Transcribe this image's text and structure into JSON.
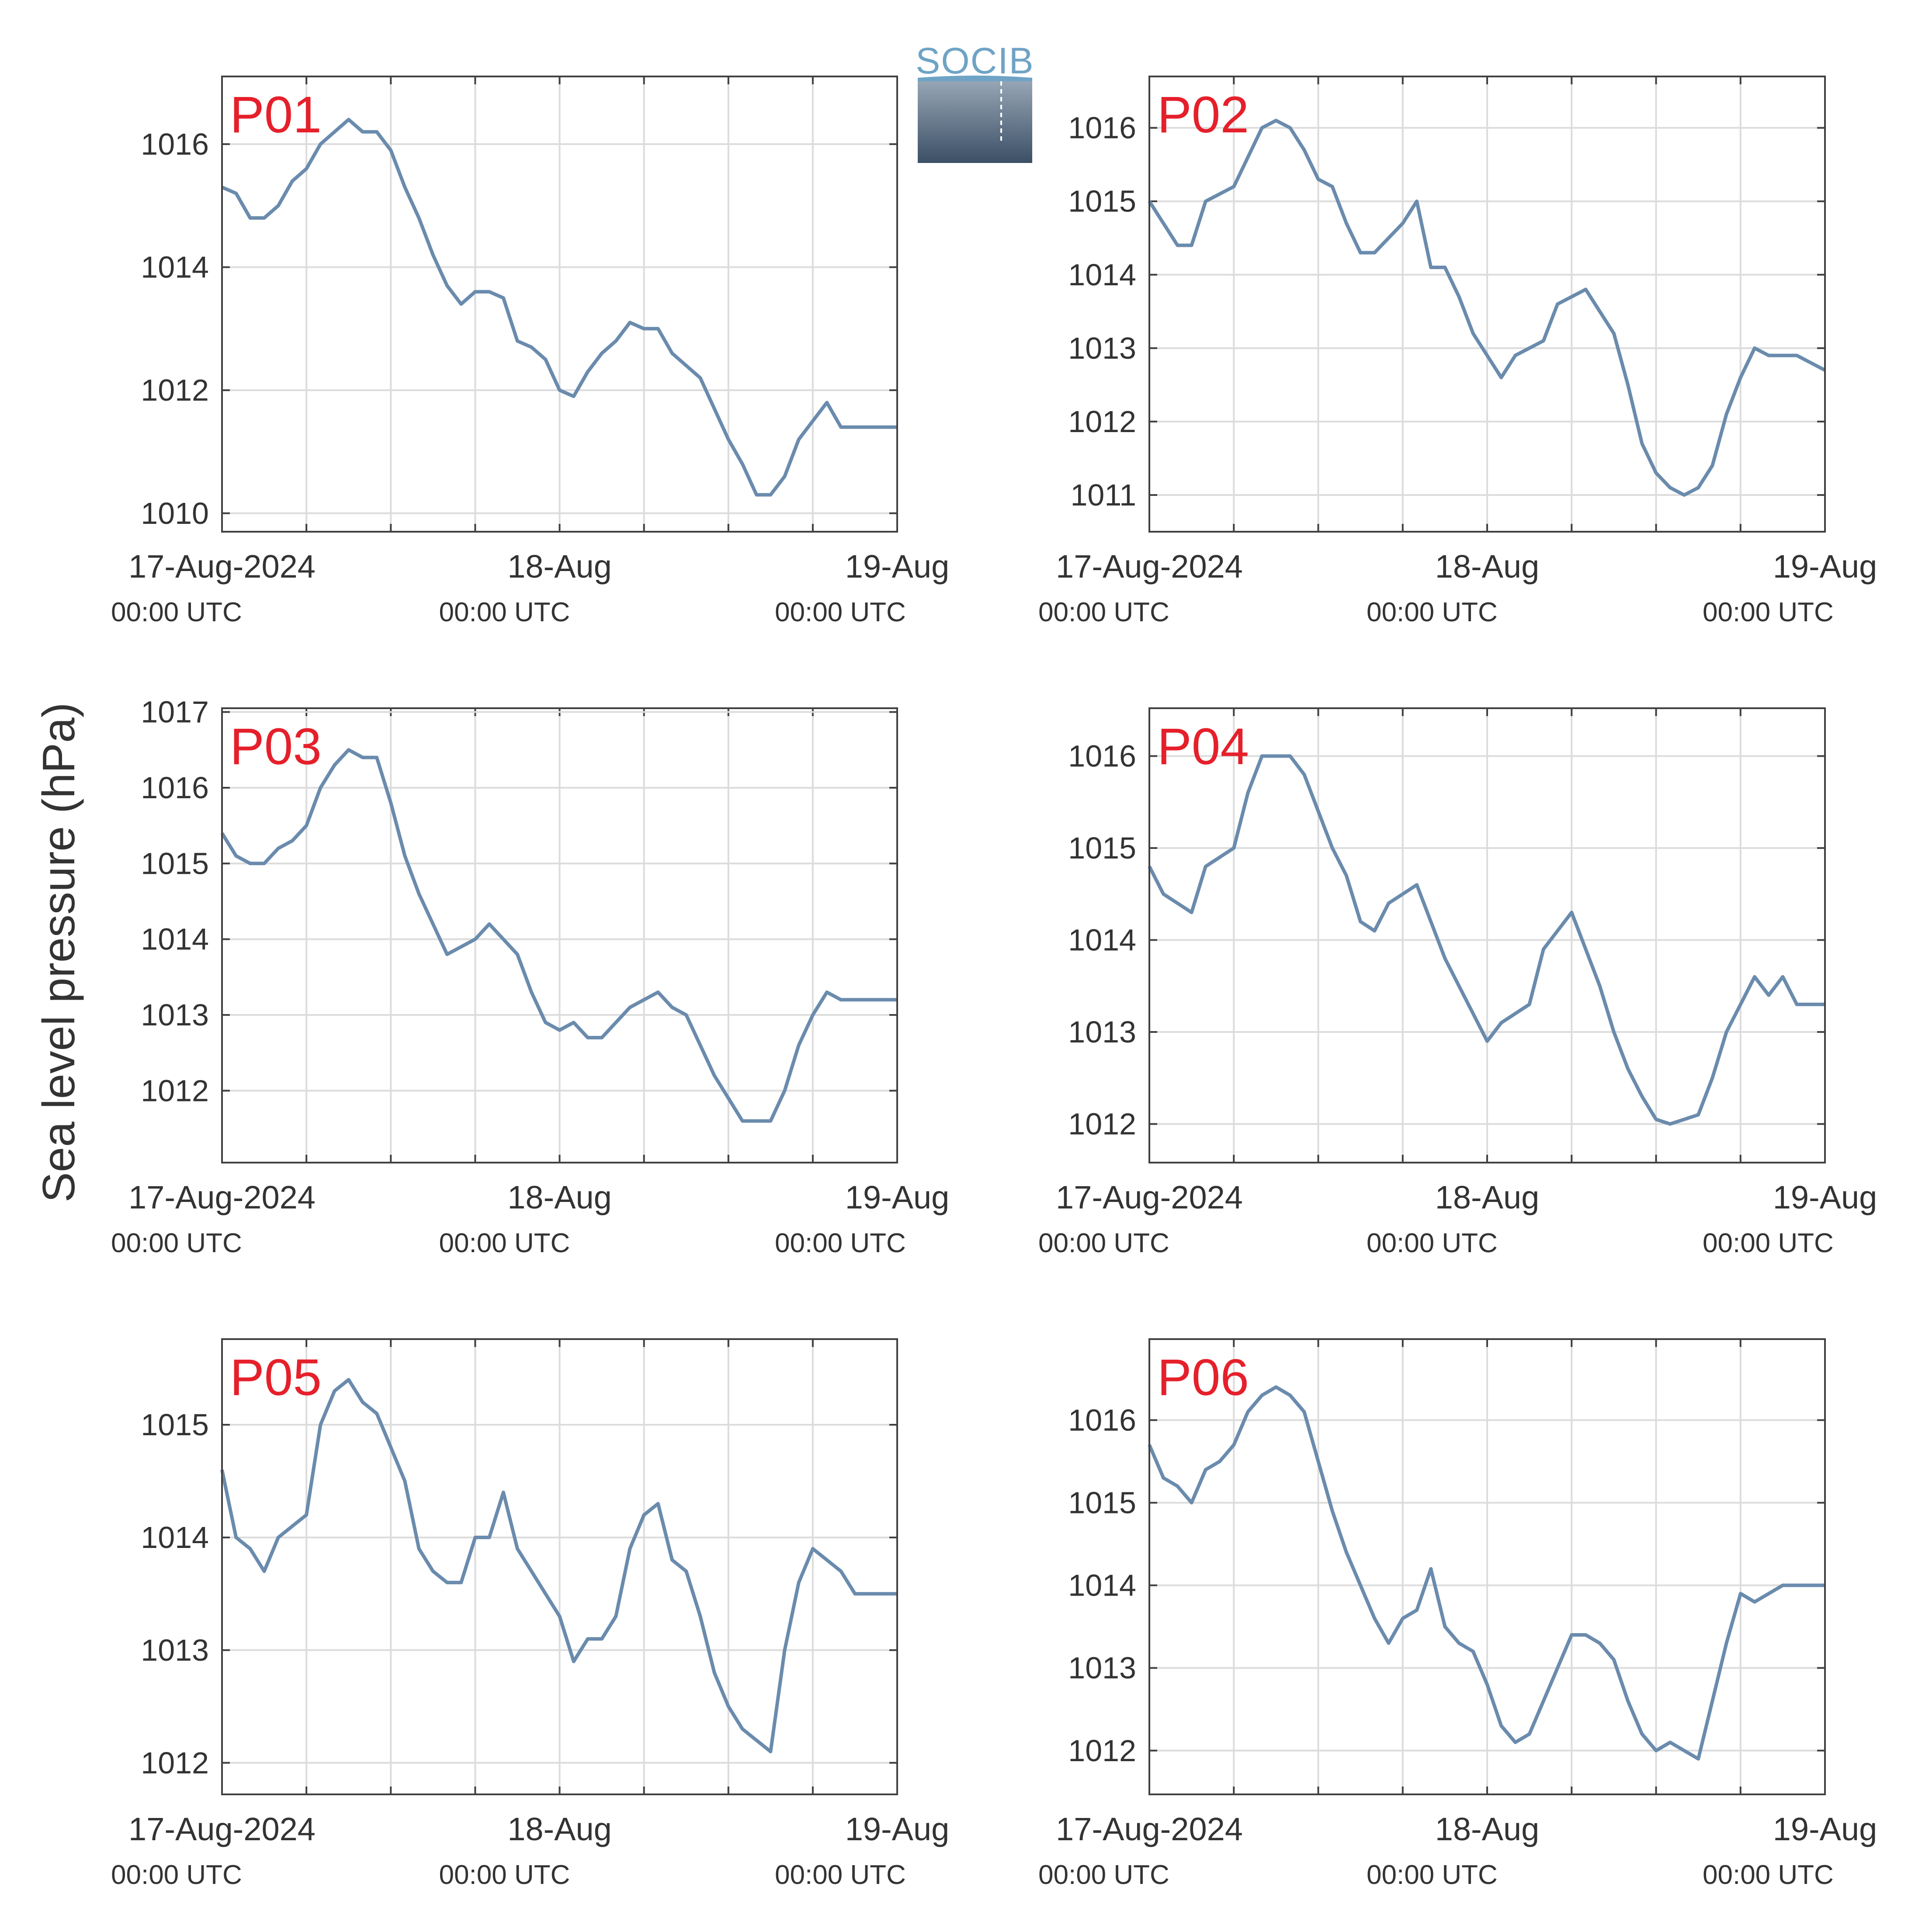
{
  "figure": {
    "ylabel": "Sea level pressure (hPa)",
    "logo_text": "SOCIB",
    "colors": {
      "line": "#6a8bad",
      "station_label": "#e5202b",
      "grid": "#dcdcdc",
      "axis": "#404040",
      "text": "#333333"
    },
    "x_tick_labels": [
      {
        "date": "17-Aug-2024",
        "time": "00:00 UTC"
      },
      {
        "date": "18-Aug",
        "time": "00:00 UTC"
      },
      {
        "date": "19-Aug",
        "time": "00:00 UTC"
      }
    ]
  },
  "chart_data": [
    {
      "type": "line",
      "station": "P01",
      "xlabel": "",
      "ylabel": "Sea level pressure (hPa)",
      "xlim": [
        "2024-08-17T00:00Z",
        "2024-08-19T00:00Z"
      ],
      "ylim": [
        1009.7,
        1017.1
      ],
      "yticks": [
        1010,
        1012,
        1014,
        1016
      ],
      "grid": true,
      "series": [
        {
          "x": [
            "2024-08-17T00:00Z",
            "2024-08-17T01:00Z",
            "2024-08-17T02:00Z",
            "2024-08-17T03:00Z",
            "2024-08-17T04:00Z",
            "2024-08-17T05:00Z",
            "2024-08-17T06:00Z",
            "2024-08-17T07:00Z",
            "2024-08-17T08:00Z",
            "2024-08-17T09:00Z",
            "2024-08-17T10:00Z",
            "2024-08-17T11:00Z",
            "2024-08-17T12:00Z",
            "2024-08-17T13:00Z",
            "2024-08-17T14:00Z",
            "2024-08-17T15:00Z",
            "2024-08-17T16:00Z",
            "2024-08-17T17:00Z",
            "2024-08-17T18:00Z",
            "2024-08-17T19:00Z",
            "2024-08-17T20:00Z",
            "2024-08-17T21:00Z",
            "2024-08-17T22:00Z",
            "2024-08-17T23:00Z",
            "2024-08-18T00:00Z",
            "2024-08-18T01:00Z",
            "2024-08-18T02:00Z",
            "2024-08-18T03:00Z",
            "2024-08-18T04:00Z",
            "2024-08-18T05:00Z",
            "2024-08-18T06:00Z",
            "2024-08-18T07:00Z",
            "2024-08-18T08:00Z",
            "2024-08-18T09:00Z",
            "2024-08-18T10:00Z",
            "2024-08-18T11:00Z",
            "2024-08-18T12:00Z",
            "2024-08-18T13:00Z",
            "2024-08-18T14:00Z",
            "2024-08-18T15:00Z",
            "2024-08-18T16:00Z",
            "2024-08-18T17:00Z",
            "2024-08-18T18:00Z",
            "2024-08-18T19:00Z",
            "2024-08-18T20:00Z",
            "2024-08-18T21:00Z",
            "2024-08-18T22:00Z",
            "2024-08-18T23:00Z",
            "2024-08-19T00:00Z"
          ],
          "y": [
            1015.3,
            1015.2,
            1014.8,
            1014.8,
            1015.0,
            1015.4,
            1015.6,
            1016.0,
            1016.2,
            1016.4,
            1016.2,
            1016.2,
            1015.9,
            1015.3,
            1014.8,
            1014.2,
            1013.7,
            1013.4,
            1013.6,
            1013.6,
            1013.5,
            1012.8,
            1012.7,
            1012.5,
            1012.0,
            1011.9,
            1012.3,
            1012.6,
            1012.8,
            1013.1,
            1013.0,
            1013.0,
            1012.6,
            1012.4,
            1012.2,
            1011.7,
            1011.2,
            1010.8,
            1010.3,
            1010.3,
            1010.6,
            1011.2,
            1011.5,
            1011.8,
            1011.4,
            1011.4,
            1011.4,
            1011.4,
            1011.4
          ]
        }
      ]
    },
    {
      "type": "line",
      "station": "P02",
      "xlabel": "",
      "ylabel": "Sea level pressure (hPa)",
      "xlim": [
        "2024-08-17T00:00Z",
        "2024-08-19T00:00Z"
      ],
      "ylim": [
        1010.5,
        1016.7
      ],
      "yticks": [
        1011,
        1012,
        1013,
        1014,
        1015,
        1016
      ],
      "grid": true,
      "series": [
        {
          "x": [
            "2024-08-17T00:00Z",
            "2024-08-17T01:00Z",
            "2024-08-17T02:00Z",
            "2024-08-17T03:00Z",
            "2024-08-17T04:00Z",
            "2024-08-17T05:00Z",
            "2024-08-17T06:00Z",
            "2024-08-17T07:00Z",
            "2024-08-17T08:00Z",
            "2024-08-17T09:00Z",
            "2024-08-17T10:00Z",
            "2024-08-17T11:00Z",
            "2024-08-17T12:00Z",
            "2024-08-17T13:00Z",
            "2024-08-17T14:00Z",
            "2024-08-17T15:00Z",
            "2024-08-17T16:00Z",
            "2024-08-17T17:00Z",
            "2024-08-17T18:00Z",
            "2024-08-17T19:00Z",
            "2024-08-17T20:00Z",
            "2024-08-17T21:00Z",
            "2024-08-17T22:00Z",
            "2024-08-17T23:00Z",
            "2024-08-18T00:00Z",
            "2024-08-18T01:00Z",
            "2024-08-18T02:00Z",
            "2024-08-18T03:00Z",
            "2024-08-18T04:00Z",
            "2024-08-18T05:00Z",
            "2024-08-18T06:00Z",
            "2024-08-18T07:00Z",
            "2024-08-18T08:00Z",
            "2024-08-18T09:00Z",
            "2024-08-18T10:00Z",
            "2024-08-18T11:00Z",
            "2024-08-18T12:00Z",
            "2024-08-18T13:00Z",
            "2024-08-18T14:00Z",
            "2024-08-18T15:00Z",
            "2024-08-18T16:00Z",
            "2024-08-18T17:00Z",
            "2024-08-18T18:00Z",
            "2024-08-18T19:00Z",
            "2024-08-18T20:00Z",
            "2024-08-18T21:00Z",
            "2024-08-18T22:00Z",
            "2024-08-18T23:00Z",
            "2024-08-19T00:00Z"
          ],
          "y": [
            1015.0,
            1014.7,
            1014.4,
            1014.4,
            1015.0,
            1015.1,
            1015.2,
            1015.6,
            1016.0,
            1016.1,
            1016.0,
            1015.7,
            1015.3,
            1015.2,
            1014.7,
            1014.3,
            1014.3,
            1014.5,
            1014.7,
            1015.0,
            1014.1,
            1014.1,
            1013.7,
            1013.2,
            1012.9,
            1012.6,
            1012.9,
            1013.0,
            1013.1,
            1013.6,
            1013.7,
            1013.8,
            1013.5,
            1013.2,
            1012.5,
            1011.7,
            1011.3,
            1011.1,
            1011.0,
            1011.1,
            1011.4,
            1012.1,
            1012.6,
            1013.0,
            1012.9,
            1012.9,
            1012.9,
            1012.8,
            1012.7
          ]
        }
      ]
    },
    {
      "type": "line",
      "station": "P03",
      "xlabel": "",
      "ylabel": "Sea level pressure (hPa)",
      "xlim": [
        "2024-08-17T00:00Z",
        "2024-08-19T00:00Z"
      ],
      "ylim": [
        1011.05,
        1017.05
      ],
      "yticks": [
        1012,
        1013,
        1014,
        1015,
        1016,
        1017
      ],
      "grid": true,
      "series": [
        {
          "x": [
            "2024-08-17T00:00Z",
            "2024-08-17T01:00Z",
            "2024-08-17T02:00Z",
            "2024-08-17T03:00Z",
            "2024-08-17T04:00Z",
            "2024-08-17T05:00Z",
            "2024-08-17T06:00Z",
            "2024-08-17T07:00Z",
            "2024-08-17T08:00Z",
            "2024-08-17T09:00Z",
            "2024-08-17T10:00Z",
            "2024-08-17T11:00Z",
            "2024-08-17T12:00Z",
            "2024-08-17T13:00Z",
            "2024-08-17T14:00Z",
            "2024-08-17T15:00Z",
            "2024-08-17T16:00Z",
            "2024-08-17T17:00Z",
            "2024-08-17T18:00Z",
            "2024-08-17T19:00Z",
            "2024-08-17T20:00Z",
            "2024-08-17T21:00Z",
            "2024-08-17T22:00Z",
            "2024-08-17T23:00Z",
            "2024-08-18T00:00Z",
            "2024-08-18T01:00Z",
            "2024-08-18T02:00Z",
            "2024-08-18T03:00Z",
            "2024-08-18T04:00Z",
            "2024-08-18T05:00Z",
            "2024-08-18T06:00Z",
            "2024-08-18T07:00Z",
            "2024-08-18T08:00Z",
            "2024-08-18T09:00Z",
            "2024-08-18T10:00Z",
            "2024-08-18T11:00Z",
            "2024-08-18T12:00Z",
            "2024-08-18T13:00Z",
            "2024-08-18T14:00Z",
            "2024-08-18T15:00Z",
            "2024-08-18T16:00Z",
            "2024-08-18T17:00Z",
            "2024-08-18T18:00Z",
            "2024-08-18T19:00Z",
            "2024-08-18T20:00Z",
            "2024-08-18T21:00Z",
            "2024-08-18T22:00Z",
            "2024-08-18T23:00Z",
            "2024-08-19T00:00Z"
          ],
          "y": [
            1015.4,
            1015.1,
            1015.0,
            1015.0,
            1015.2,
            1015.3,
            1015.5,
            1016.0,
            1016.3,
            1016.5,
            1016.4,
            1016.4,
            1015.8,
            1015.1,
            1014.6,
            1014.2,
            1013.8,
            1013.9,
            1014.0,
            1014.2,
            1014.0,
            1013.8,
            1013.3,
            1012.9,
            1012.8,
            1012.9,
            1012.7,
            1012.7,
            1012.9,
            1013.1,
            1013.2,
            1013.3,
            1013.1,
            1013.0,
            1012.6,
            1012.2,
            1011.9,
            1011.6,
            1011.6,
            1011.6,
            1012.0,
            1012.6,
            1013.0,
            1013.3,
            1013.2,
            1013.2,
            1013.2,
            1013.2,
            1013.2
          ]
        }
      ]
    },
    {
      "type": "line",
      "station": "P04",
      "xlabel": "",
      "ylabel": "Sea level pressure (hPa)",
      "xlim": [
        "2024-08-17T00:00Z",
        "2024-08-19T00:00Z"
      ],
      "ylim": [
        1011.58,
        1016.52
      ],
      "yticks": [
        1012,
        1013,
        1014,
        1015,
        1016
      ],
      "grid": true,
      "series": [
        {
          "x": [
            "2024-08-17T00:00Z",
            "2024-08-17T01:00Z",
            "2024-08-17T02:00Z",
            "2024-08-17T03:00Z",
            "2024-08-17T04:00Z",
            "2024-08-17T05:00Z",
            "2024-08-17T06:00Z",
            "2024-08-17T07:00Z",
            "2024-08-17T08:00Z",
            "2024-08-17T09:00Z",
            "2024-08-17T10:00Z",
            "2024-08-17T11:00Z",
            "2024-08-17T12:00Z",
            "2024-08-17T13:00Z",
            "2024-08-17T14:00Z",
            "2024-08-17T15:00Z",
            "2024-08-17T16:00Z",
            "2024-08-17T17:00Z",
            "2024-08-17T18:00Z",
            "2024-08-17T19:00Z",
            "2024-08-17T20:00Z",
            "2024-08-17T21:00Z",
            "2024-08-17T22:00Z",
            "2024-08-17T23:00Z",
            "2024-08-18T00:00Z",
            "2024-08-18T01:00Z",
            "2024-08-18T02:00Z",
            "2024-08-18T03:00Z",
            "2024-08-18T04:00Z",
            "2024-08-18T05:00Z",
            "2024-08-18T06:00Z",
            "2024-08-18T07:00Z",
            "2024-08-18T08:00Z",
            "2024-08-18T09:00Z",
            "2024-08-18T10:00Z",
            "2024-08-18T11:00Z",
            "2024-08-18T12:00Z",
            "2024-08-18T13:00Z",
            "2024-08-18T14:00Z",
            "2024-08-18T15:00Z",
            "2024-08-18T16:00Z",
            "2024-08-18T17:00Z",
            "2024-08-18T18:00Z",
            "2024-08-18T19:00Z",
            "2024-08-18T20:00Z",
            "2024-08-18T21:00Z",
            "2024-08-18T22:00Z",
            "2024-08-18T23:00Z",
            "2024-08-19T00:00Z"
          ],
          "y": [
            1014.8,
            1014.5,
            1014.4,
            1014.3,
            1014.8,
            1014.9,
            1015.0,
            1015.6,
            1016.0,
            1016.0,
            1016.0,
            1015.8,
            1015.4,
            1015.0,
            1014.7,
            1014.2,
            1014.1,
            1014.4,
            1014.5,
            1014.6,
            1014.2,
            1013.8,
            1013.5,
            1013.2,
            1012.9,
            1013.1,
            1013.2,
            1013.3,
            1013.9,
            1014.1,
            1014.3,
            1013.9,
            1013.5,
            1013.0,
            1012.6,
            1012.3,
            1012.05,
            1012.0,
            1012.05,
            1012.1,
            1012.5,
            1013.0,
            1013.3,
            1013.6,
            1013.4,
            1013.6,
            1013.3,
            1013.3,
            1013.3
          ]
        }
      ]
    },
    {
      "type": "line",
      "station": "P05",
      "xlabel": "",
      "ylabel": "Sea level pressure (hPa)",
      "xlim": [
        "2024-08-17T00:00Z",
        "2024-08-19T00:00Z"
      ],
      "ylim": [
        1011.72,
        1015.76
      ],
      "yticks": [
        1012,
        1013,
        1014,
        1015
      ],
      "grid": true,
      "series": [
        {
          "x": [
            "2024-08-17T00:00Z",
            "2024-08-17T01:00Z",
            "2024-08-17T02:00Z",
            "2024-08-17T03:00Z",
            "2024-08-17T04:00Z",
            "2024-08-17T05:00Z",
            "2024-08-17T06:00Z",
            "2024-08-17T07:00Z",
            "2024-08-17T08:00Z",
            "2024-08-17T09:00Z",
            "2024-08-17T10:00Z",
            "2024-08-17T11:00Z",
            "2024-08-17T12:00Z",
            "2024-08-17T13:00Z",
            "2024-08-17T14:00Z",
            "2024-08-17T15:00Z",
            "2024-08-17T16:00Z",
            "2024-08-17T17:00Z",
            "2024-08-17T18:00Z",
            "2024-08-17T19:00Z",
            "2024-08-17T20:00Z",
            "2024-08-17T21:00Z",
            "2024-08-17T22:00Z",
            "2024-08-17T23:00Z",
            "2024-08-18T00:00Z",
            "2024-08-18T01:00Z",
            "2024-08-18T02:00Z",
            "2024-08-18T03:00Z",
            "2024-08-18T04:00Z",
            "2024-08-18T05:00Z",
            "2024-08-18T06:00Z",
            "2024-08-18T07:00Z",
            "2024-08-18T08:00Z",
            "2024-08-18T09:00Z",
            "2024-08-18T10:00Z",
            "2024-08-18T11:00Z",
            "2024-08-18T12:00Z",
            "2024-08-18T13:00Z",
            "2024-08-18T14:00Z",
            "2024-08-18T15:00Z",
            "2024-08-18T16:00Z",
            "2024-08-18T17:00Z",
            "2024-08-18T18:00Z",
            "2024-08-18T19:00Z",
            "2024-08-18T20:00Z",
            "2024-08-18T21:00Z",
            "2024-08-18T22:00Z",
            "2024-08-18T23:00Z",
            "2024-08-19T00:00Z"
          ],
          "y": [
            1014.6,
            1014.0,
            1013.9,
            1013.7,
            1014.0,
            1014.1,
            1014.2,
            1015.0,
            1015.3,
            1015.4,
            1015.2,
            1015.1,
            1014.8,
            1014.5,
            1013.9,
            1013.7,
            1013.6,
            1013.6,
            1014.0,
            1014.0,
            1014.4,
            1013.9,
            1013.7,
            1013.5,
            1013.3,
            1012.9,
            1013.1,
            1013.1,
            1013.3,
            1013.9,
            1014.2,
            1014.3,
            1013.8,
            1013.7,
            1013.3,
            1012.8,
            1012.5,
            1012.3,
            1012.2,
            1012.1,
            1013.0,
            1013.6,
            1013.9,
            1013.8,
            1013.7,
            1013.5,
            1013.5,
            1013.5,
            1013.5
          ]
        }
      ]
    },
    {
      "type": "line",
      "station": "P06",
      "xlabel": "",
      "ylabel": "Sea level pressure (hPa)",
      "xlim": [
        "2024-08-17T00:00Z",
        "2024-08-19T00:00Z"
      ],
      "ylim": [
        1011.47,
        1016.98
      ],
      "yticks": [
        1012,
        1013,
        1014,
        1015,
        1016
      ],
      "grid": true,
      "series": [
        {
          "x": [
            "2024-08-17T00:00Z",
            "2024-08-17T01:00Z",
            "2024-08-17T02:00Z",
            "2024-08-17T03:00Z",
            "2024-08-17T04:00Z",
            "2024-08-17T05:00Z",
            "2024-08-17T06:00Z",
            "2024-08-17T07:00Z",
            "2024-08-17T08:00Z",
            "2024-08-17T09:00Z",
            "2024-08-17T10:00Z",
            "2024-08-17T11:00Z",
            "2024-08-17T12:00Z",
            "2024-08-17T13:00Z",
            "2024-08-17T14:00Z",
            "2024-08-17T15:00Z",
            "2024-08-17T16:00Z",
            "2024-08-17T17:00Z",
            "2024-08-17T18:00Z",
            "2024-08-17T19:00Z",
            "2024-08-17T20:00Z",
            "2024-08-17T21:00Z",
            "2024-08-17T22:00Z",
            "2024-08-17T23:00Z",
            "2024-08-18T00:00Z",
            "2024-08-18T01:00Z",
            "2024-08-18T02:00Z",
            "2024-08-18T03:00Z",
            "2024-08-18T04:00Z",
            "2024-08-18T05:00Z",
            "2024-08-18T06:00Z",
            "2024-08-18T07:00Z",
            "2024-08-18T08:00Z",
            "2024-08-18T09:00Z",
            "2024-08-18T10:00Z",
            "2024-08-18T11:00Z",
            "2024-08-18T12:00Z",
            "2024-08-18T13:00Z",
            "2024-08-18T14:00Z",
            "2024-08-18T15:00Z",
            "2024-08-18T16:00Z",
            "2024-08-18T17:00Z",
            "2024-08-18T18:00Z",
            "2024-08-18T19:00Z",
            "2024-08-18T20:00Z",
            "2024-08-18T21:00Z",
            "2024-08-18T22:00Z",
            "2024-08-18T23:00Z",
            "2024-08-19T00:00Z"
          ],
          "y": [
            1015.7,
            1015.3,
            1015.2,
            1015.0,
            1015.4,
            1015.5,
            1015.7,
            1016.1,
            1016.3,
            1016.4,
            1016.3,
            1016.1,
            1015.5,
            1014.9,
            1014.4,
            1014.0,
            1013.6,
            1013.3,
            1013.6,
            1013.7,
            1014.2,
            1013.5,
            1013.3,
            1013.2,
            1012.8,
            1012.3,
            1012.1,
            1012.2,
            1012.6,
            1013.0,
            1013.4,
            1013.4,
            1013.3,
            1013.1,
            1012.6,
            1012.2,
            1012.0,
            1012.1,
            1012.0,
            1011.9,
            1012.6,
            1013.3,
            1013.9,
            1013.8,
            1013.9,
            1014.0,
            1014.0,
            1014.0,
            1014.0
          ]
        }
      ]
    }
  ]
}
